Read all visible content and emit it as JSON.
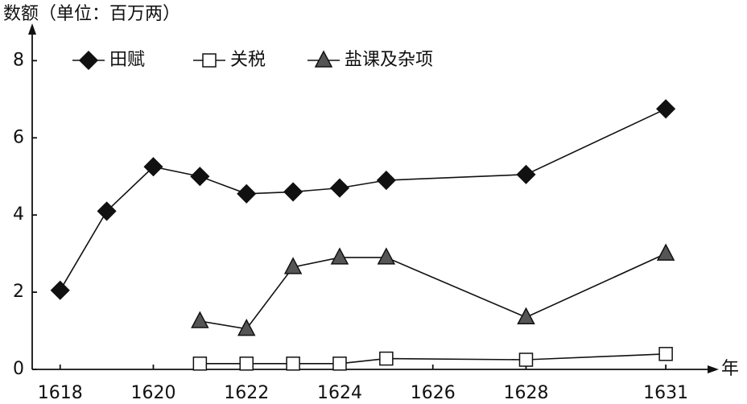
{
  "chart_data": {
    "type": "line",
    "y_label": "数额（单位：百万两）",
    "x_label": "年",
    "x": [
      1618,
      1619,
      1620,
      1621,
      1622,
      1623,
      1624,
      1625,
      1628,
      1631
    ],
    "series": [
      {
        "name": "田赋",
        "color": "#111111",
        "marker": "diamond",
        "values": [
          2.05,
          4.1,
          5.25,
          5.0,
          4.55,
          4.6,
          4.7,
          4.9,
          5.05,
          6.75
        ]
      },
      {
        "name": "关税",
        "color": "#ffffff",
        "marker": "square",
        "values": [
          null,
          null,
          null,
          0.15,
          0.15,
          0.15,
          0.15,
          0.28,
          0.25,
          0.4
        ]
      },
      {
        "name": "盐课及杂项",
        "color": "#555555",
        "marker": "triangle",
        "values": [
          null,
          null,
          null,
          1.25,
          1.05,
          2.65,
          2.9,
          2.9,
          1.35,
          3.0
        ]
      }
    ],
    "xlim": [
      1617.4,
      1632
    ],
    "xticks": [
      1618,
      1620,
      1622,
      1624,
      1626,
      1628,
      1631
    ],
    "ylim": [
      0,
      8.8
    ],
    "yticks": [
      0,
      2,
      4,
      6,
      8
    ],
    "grid": false,
    "legend": "top-left"
  }
}
